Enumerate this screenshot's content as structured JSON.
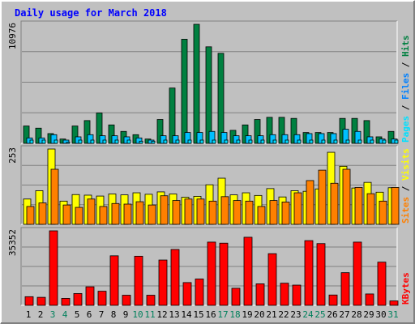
{
  "title": "Daily usage for March 2018",
  "colors": {
    "background": "#c0c0c0",
    "frame_dark": "#808080",
    "frame_light": "#ffffff",
    "title": "#0000ff",
    "hits": "#008040",
    "files": "#00c0ff",
    "pages": "#00e0ff",
    "visits": "#ffff00",
    "sites": "#ff8000",
    "kbytes": "#ff0000",
    "weekend_label": "#00805c",
    "day_label": "#000000"
  },
  "panels": [
    {
      "name": "requests",
      "max_label": "10976",
      "legend": [
        {
          "text": "Pages",
          "color": "#00e0ff"
        },
        {
          "text": " / ",
          "color": "#000000"
        },
        {
          "text": "Files",
          "color": "#0080ff"
        },
        {
          "text": " / ",
          "color": "#000000"
        },
        {
          "text": "Hits",
          "color": "#008040"
        }
      ]
    },
    {
      "name": "visitors",
      "max_label": "253",
      "legend": [
        {
          "text": "Sites",
          "color": "#ff8000"
        },
        {
          "text": " / ",
          "color": "#000000"
        },
        {
          "text": "Visits",
          "color": "#ffff00"
        }
      ]
    },
    {
      "name": "traffic",
      "max_label": "35352",
      "legend": [
        {
          "text": "KBytes",
          "color": "#ff0000"
        }
      ]
    }
  ],
  "chart_data": {
    "type": "bar",
    "title": "Daily usage for March 2018",
    "categories": [
      "1",
      "2",
      "3",
      "4",
      "5",
      "6",
      "7",
      "8",
      "9",
      "10",
      "11",
      "12",
      "13",
      "14",
      "15",
      "16",
      "17",
      "18",
      "19",
      "20",
      "21",
      "22",
      "23",
      "24",
      "25",
      "26",
      "27",
      "28",
      "29",
      "30",
      "31"
    ],
    "weekend_days": [
      "3",
      "4",
      "10",
      "11",
      "17",
      "18",
      "24",
      "25",
      "31"
    ],
    "series": [
      {
        "name": "Hits",
        "panel": "requests",
        "values": [
          1600,
          1400,
          900,
          400,
          1600,
          2100,
          2800,
          1700,
          1100,
          800,
          400,
          2200,
          5100,
          9600,
          10976,
          8900,
          8300,
          1200,
          1700,
          2200,
          2400,
          2400,
          2300,
          1000,
          1000,
          1000,
          2300,
          2300,
          2100,
          600,
          1100
        ]
      },
      {
        "name": "Files",
        "panel": "requests",
        "values": [
          500,
          500,
          800,
          300,
          600,
          800,
          700,
          700,
          600,
          500,
          300,
          700,
          700,
          1000,
          1000,
          1100,
          1000,
          700,
          700,
          700,
          800,
          800,
          800,
          900,
          900,
          900,
          1300,
          1100,
          600,
          400,
          400
        ]
      },
      {
        "name": "Pages",
        "panel": "requests",
        "values": [
          300,
          300,
          300,
          100,
          300,
          300,
          300,
          300,
          300,
          200,
          200,
          300,
          300,
          300,
          300,
          300,
          300,
          300,
          300,
          300,
          300,
          300,
          300,
          300,
          300,
          300,
          300,
          300,
          300,
          300,
          300
        ]
      },
      {
        "name": "Visits",
        "panel": "visitors",
        "values": [
          85,
          113,
          253,
          78,
          100,
          98,
          95,
          102,
          99,
          106,
          101,
          109,
          102,
          91,
          94,
          133,
          155,
          99,
          106,
          97,
          120,
          92,
          113,
          111,
          119,
          242,
          195,
          122,
          141,
          108,
          123
        ]
      },
      {
        "name": "Sites",
        "panel": "visitors",
        "values": [
          60,
          72,
          185,
          65,
          57,
          85,
          60,
          70,
          68,
          76,
          65,
          96,
          80,
          85,
          85,
          78,
          93,
          80,
          78,
          60,
          80,
          75,
          106,
          147,
          182,
          138,
          185,
          124,
          103,
          78,
          124
        ]
      },
      {
        "name": "KBytes",
        "panel": "traffic",
        "values": [
          4100,
          3800,
          35352,
          3300,
          5600,
          8800,
          6700,
          23500,
          4800,
          23300,
          4800,
          21500,
          26500,
          10800,
          12500,
          30000,
          29500,
          8100,
          32300,
          10200,
          24500,
          10500,
          9600,
          30700,
          29300,
          4900,
          15500,
          30000,
          5400,
          20500,
          2100
        ]
      }
    ],
    "panel_ylim": {
      "requests": [
        0,
        10976
      ],
      "visitors": [
        0,
        253
      ],
      "traffic": [
        0,
        35352
      ]
    },
    "grid": true
  }
}
